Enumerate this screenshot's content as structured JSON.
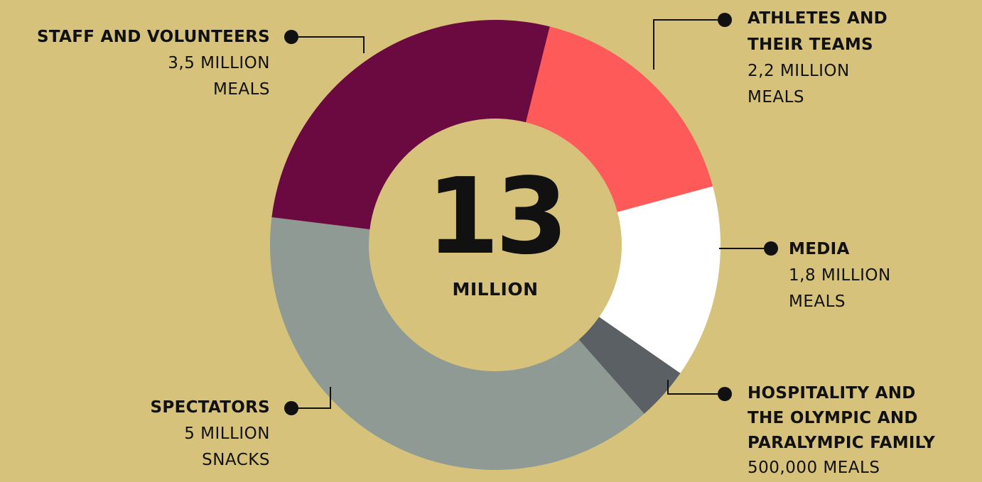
{
  "chart_data": {
    "type": "pie",
    "center": {
      "value": "13",
      "unit": "MILLION"
    },
    "slices": [
      {
        "name_lines": [
          "STAFF AND VOLUNTEERS"
        ],
        "value_lines": [
          "3,5 MILLION",
          "MEALS"
        ],
        "value": 3.5,
        "color": "#6b0a40"
      },
      {
        "name_lines": [
          "ATHLETES AND",
          "THEIR TEAMS"
        ],
        "value_lines": [
          "2,2 MILLION",
          "MEALS"
        ],
        "value": 2.2,
        "color": "#ff5a5a"
      },
      {
        "name_lines": [
          "MEDIA"
        ],
        "value_lines": [
          "1,8 MILLION",
          "MEALS"
        ],
        "value": 1.8,
        "color": "#ffffff"
      },
      {
        "name_lines": [
          "HOSPITALITY AND",
          "THE OLYMPIC AND",
          "PARALYMPIC FAMILY"
        ],
        "value_lines": [
          "500,000 MEALS"
        ],
        "value": 0.5,
        "color": "#5b6064"
      },
      {
        "name_lines": [
          "SPECTATORS"
        ],
        "value_lines": [
          "5 MILLION",
          "SNACKS"
        ],
        "value": 5.0,
        "color": "#8e9a93"
      }
    ]
  }
}
